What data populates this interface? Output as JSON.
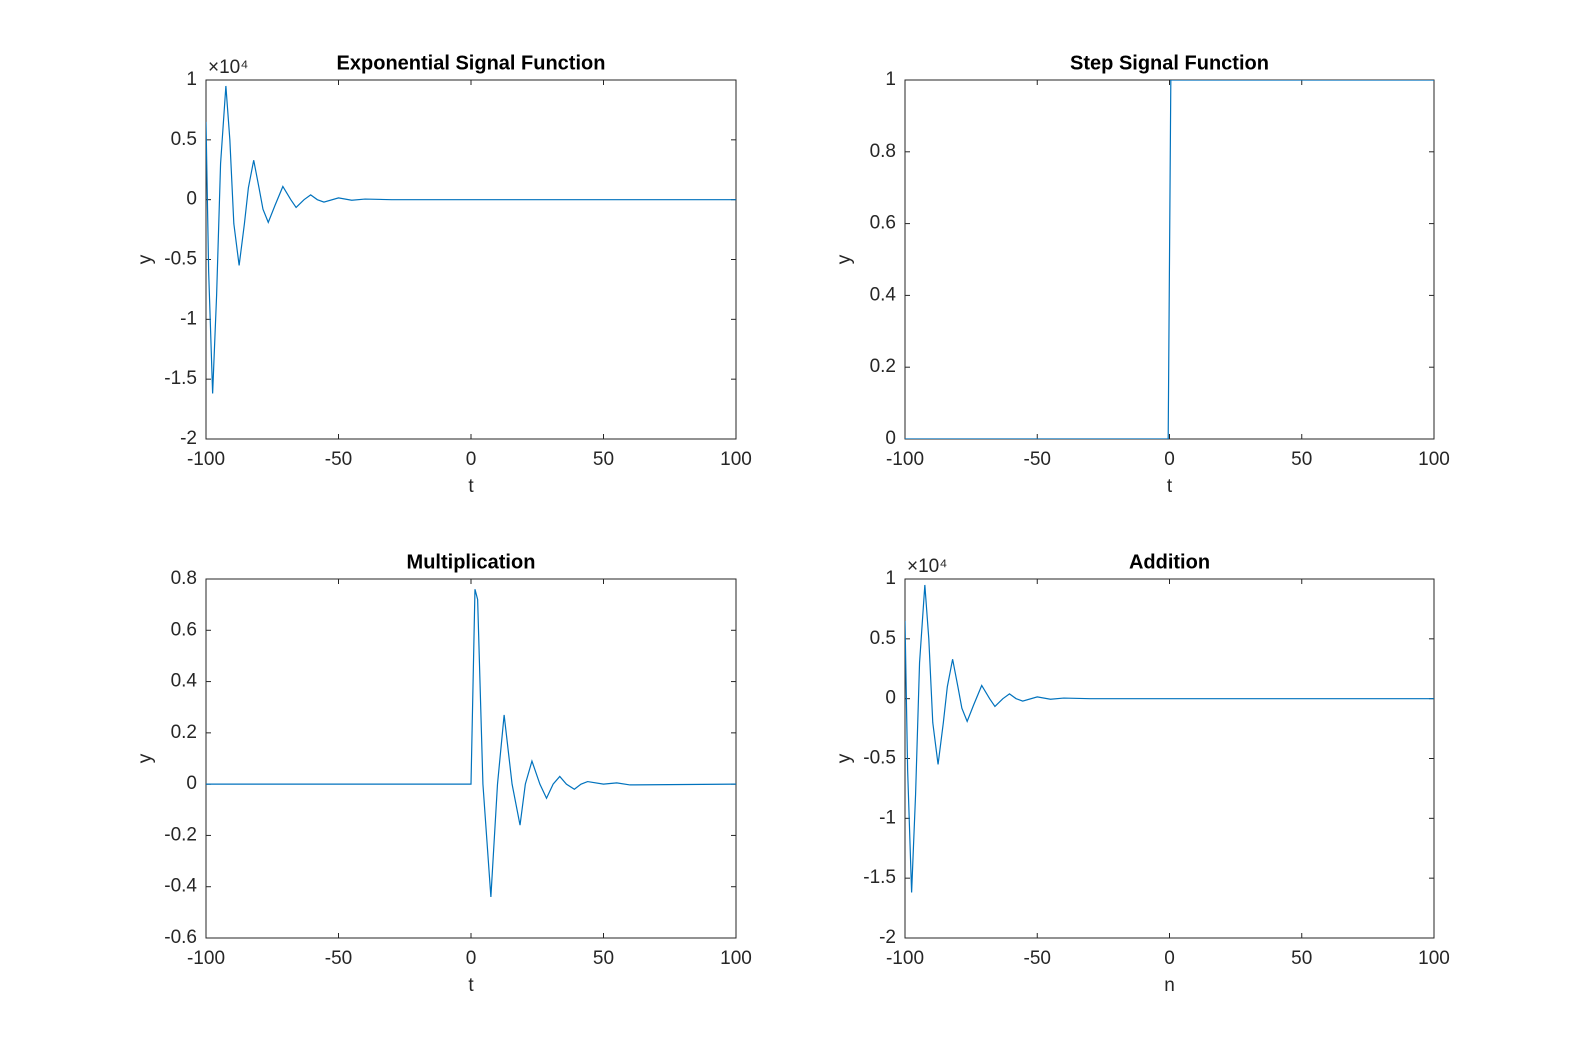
{
  "chart_data": [
    {
      "type": "line",
      "title": "Exponential Signal Function",
      "x_label": "t",
      "y_label": "y",
      "y_multiplier": "×10⁴",
      "x": [
        -100,
        -99,
        -97.5,
        -96,
        -94.5,
        -92.5,
        -91,
        -89.5,
        -87.5,
        -85.5,
        -84,
        -82,
        -80,
        -78.5,
        -76.5,
        -74,
        -71,
        -68,
        -66,
        -63,
        -60.5,
        -58,
        -55.5,
        -50,
        -45,
        -40,
        -30,
        100
      ],
      "values": [
        0.65,
        -0.6,
        -1.62,
        -0.8,
        0.3,
        0.95,
        0.5,
        -0.2,
        -0.55,
        -0.2,
        0.1,
        0.33,
        0.1,
        -0.08,
        -0.19,
        -0.05,
        0.11,
        0,
        -0.065,
        0,
        0.04,
        0,
        -0.02,
        0.015,
        -0.005,
        0.005,
        0,
        0
      ],
      "color": "#0072bd",
      "xlim": [
        -100,
        100
      ],
      "xticks": [
        -100,
        -50,
        0,
        50,
        100
      ],
      "ylim": [
        -2,
        1
      ],
      "yticks": [
        -2,
        -1.5,
        -1,
        -0.5,
        0,
        0.5,
        1
      ]
    },
    {
      "type": "line",
      "title": "Step Signal Function",
      "x_label": "t",
      "y_label": "y",
      "x": [
        -100,
        -0.5,
        0.5,
        100
      ],
      "values": [
        0,
        0,
        1,
        1
      ],
      "color": "#0072bd",
      "xlim": [
        -100,
        100
      ],
      "xticks": [
        -100,
        -50,
        0,
        50,
        100
      ],
      "ylim": [
        0,
        1
      ],
      "yticks": [
        0,
        0.2,
        0.4,
        0.6,
        0.8,
        1
      ]
    },
    {
      "type": "line",
      "title": "Multiplication",
      "x_label": "t",
      "y_label": "y",
      "x": [
        -100,
        0,
        1.5,
        2.5,
        4.5,
        7.5,
        10,
        12.5,
        15.5,
        18.5,
        20.5,
        23,
        26,
        28.5,
        31,
        33.5,
        36,
        39,
        41.5,
        44,
        50,
        55,
        60,
        100
      ],
      "values": [
        0,
        0,
        0.76,
        0.72,
        0,
        -0.44,
        0,
        0.27,
        0,
        -0.16,
        0,
        0.09,
        0,
        -0.055,
        0,
        0.03,
        0,
        -0.02,
        0,
        0.01,
        0,
        0.005,
        -0.003,
        0
      ],
      "color": "#0072bd",
      "xlim": [
        -100,
        100
      ],
      "xticks": [
        -100,
        -50,
        0,
        50,
        100
      ],
      "ylim": [
        -0.6,
        0.8
      ],
      "yticks": [
        -0.6,
        -0.4,
        -0.2,
        0,
        0.2,
        0.4,
        0.6,
        0.8
      ]
    },
    {
      "type": "line",
      "title": "Addition",
      "x_label": "n",
      "y_label": "y",
      "y_multiplier": "×10⁴",
      "x": [
        -100,
        -99,
        -97.5,
        -96,
        -94.5,
        -92.5,
        -91,
        -89.5,
        -87.5,
        -85.5,
        -84,
        -82,
        -80,
        -78.5,
        -76.5,
        -74,
        -71,
        -68,
        -66,
        -63,
        -60.5,
        -58,
        -55.5,
        -50,
        -45,
        -40,
        -30,
        100
      ],
      "values": [
        0.65,
        -0.6,
        -1.62,
        -0.8,
        0.3,
        0.95,
        0.5,
        -0.2,
        -0.55,
        -0.2,
        0.1,
        0.33,
        0.1,
        -0.08,
        -0.19,
        -0.05,
        0.11,
        0,
        -0.065,
        0,
        0.04,
        0,
        -0.02,
        0.015,
        -0.005,
        0.005,
        0,
        0
      ],
      "color": "#0072bd",
      "xlim": [
        -100,
        100
      ],
      "xticks": [
        -100,
        -50,
        0,
        50,
        100
      ],
      "ylim": [
        -2,
        1
      ],
      "yticks": [
        -2,
        -1.5,
        -1,
        -0.5,
        0,
        0.5,
        1
      ]
    }
  ]
}
